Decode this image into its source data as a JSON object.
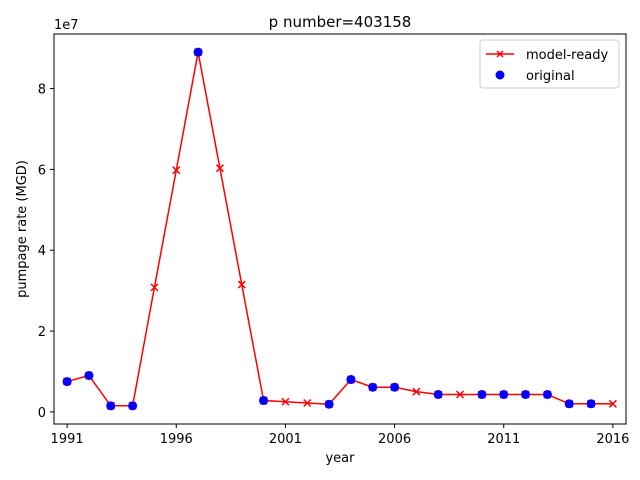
{
  "chart_data": {
    "type": "line",
    "title": "p number=403158",
    "xlabel": "year",
    "ylabel": "pumpage rate (MGD)",
    "y_offset_label": "1e7",
    "y_multiplier": 10000000,
    "xlim": [
      1990.4,
      2016.6
    ],
    "ylim": [
      -3000000,
      93500000
    ],
    "xticks": [
      1991,
      1996,
      2001,
      2006,
      2011,
      2016
    ],
    "yticks": [
      0,
      2,
      4,
      6,
      8
    ],
    "grid": false,
    "legend_position": "top-right",
    "series": [
      {
        "name": "model-ready",
        "color": "#ff0000",
        "marker": "x",
        "line": true,
        "x": [
          1991,
          1992,
          1993,
          1994,
          1995,
          1996,
          1997,
          1998,
          1999,
          2000,
          2001,
          2002,
          2003,
          2004,
          2005,
          2006,
          2007,
          2008,
          2009,
          2010,
          2011,
          2012,
          2013,
          2014,
          2015,
          2016
        ],
        "y": [
          7500000,
          9000000,
          1500000,
          1500000,
          30800000,
          59800000,
          89000000,
          60300000,
          31500000,
          2800000,
          2500000,
          2200000,
          1900000,
          8000000,
          6100000,
          6100000,
          5000000,
          4300000,
          4300000,
          4300000,
          4300000,
          4300000,
          4300000,
          2000000,
          2000000,
          2000000
        ]
      },
      {
        "name": "original",
        "color": "#0000ff",
        "marker": "o",
        "line": false,
        "x": [
          1991,
          1992,
          1993,
          1994,
          1997,
          2000,
          2003,
          2004,
          2005,
          2006,
          2008,
          2010,
          2011,
          2012,
          2013,
          2014,
          2015
        ],
        "y": [
          7500000,
          9000000,
          1500000,
          1500000,
          89000000,
          2800000,
          1900000,
          8000000,
          6100000,
          6100000,
          4300000,
          4300000,
          4300000,
          4300000,
          4300000,
          2000000,
          2000000
        ]
      }
    ]
  }
}
